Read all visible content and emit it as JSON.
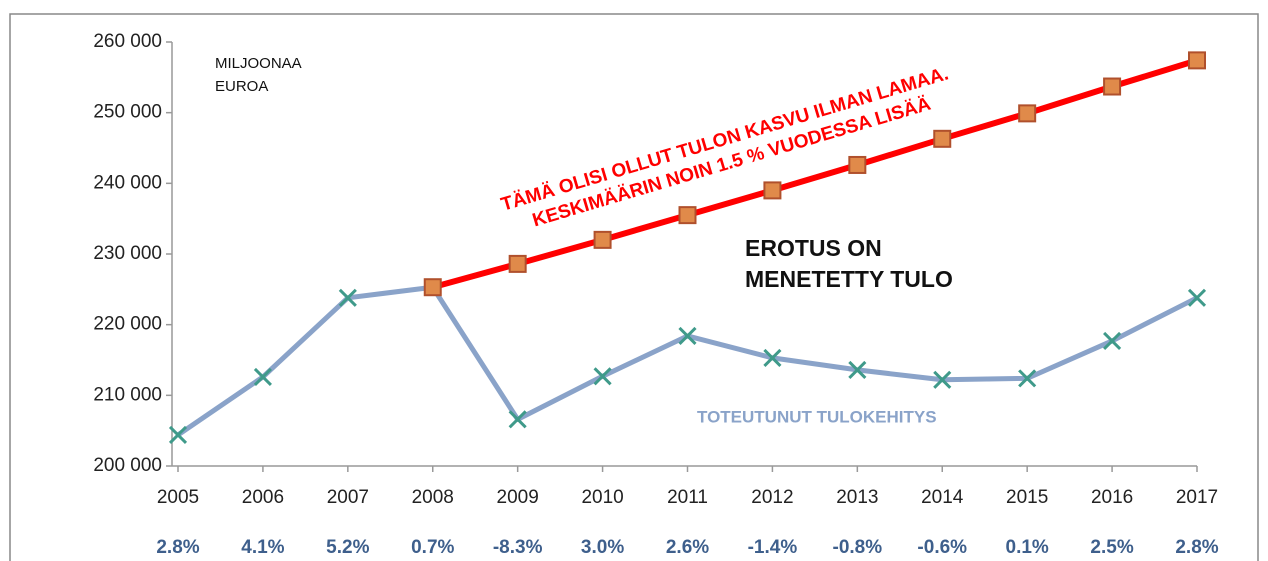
{
  "chart_data": {
    "type": "line",
    "categories": [
      "2005",
      "2006",
      "2007",
      "2008",
      "2009",
      "2010",
      "2011",
      "2012",
      "2013",
      "2014",
      "2015",
      "2016",
      "2017"
    ],
    "series": [
      {
        "name": "TOTEUTUNUT TULOKEHITYS",
        "color": "#8aa3c9",
        "values": [
          204400,
          212600,
          223800,
          225300,
          206600,
          212700,
          218400,
          215300,
          213600,
          212200,
          212400,
          217700,
          223800
        ]
      },
      {
        "name": "TÄMÄ  OLISI OLLUT TULON KASVU ILMAN LAMAA.",
        "color": "#ff0000",
        "values": [
          null,
          null,
          null,
          225300,
          228600,
          232000,
          235500,
          239000,
          242600,
          246300,
          249900,
          253700,
          257400
        ]
      }
    ],
    "ylim": [
      200000,
      260000
    ],
    "yticks": [
      {
        "value": 200000,
        "label": "200 000"
      },
      {
        "value": 210000,
        "label": "210 000"
      },
      {
        "value": 220000,
        "label": "220 000"
      },
      {
        "value": 230000,
        "label": "230 000"
      },
      {
        "value": 240000,
        "label": "240 000"
      },
      {
        "value": 250000,
        "label": "250 000"
      },
      {
        "value": 260000,
        "label": "260 000"
      }
    ],
    "unit_label": [
      "MILJOONAA",
      "EUROA"
    ],
    "red_note_line2": "KESKIMÄÄRIN  NOIN 1.5 % VUODESSA LISÄÄ",
    "gap_note": [
      "EROTUS ON",
      "MENETETTY TULO"
    ],
    "growth_labels": [
      "2.8%",
      "4.1%",
      "5.2%",
      "0.7%",
      "-8.3%",
      "3.0%",
      "2.6%",
      "-1.4%",
      "-0.8%",
      "-0.6%",
      "0.1%",
      "2.5%",
      "2.8%"
    ]
  }
}
